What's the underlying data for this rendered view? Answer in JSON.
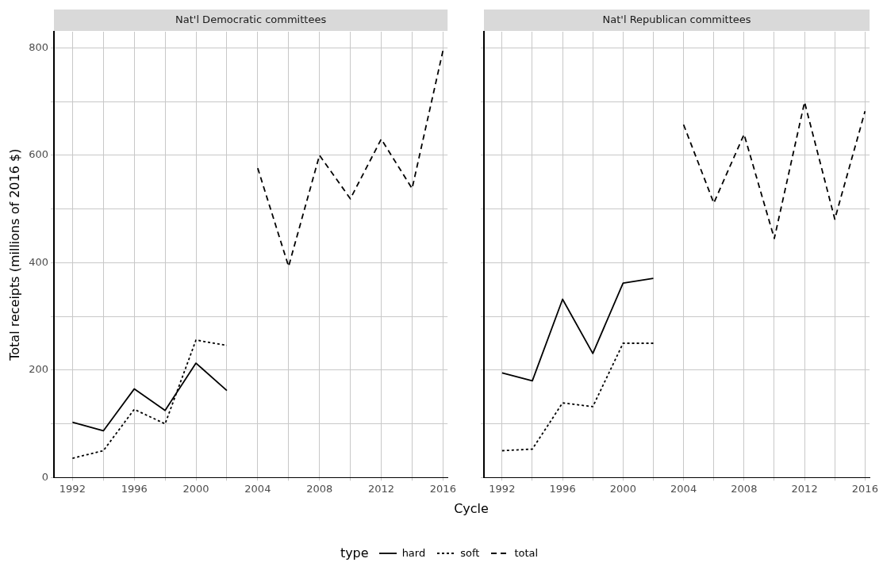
{
  "chart_data": [
    {
      "type": "line",
      "title": "Nat'l Democratic committees",
      "xlabel": "Cycle",
      "ylabel": "Total receipts (millions of 2016 $)",
      "legend_title": "type",
      "legend": "bottom",
      "grid": true,
      "xlim": [
        1990.8,
        2016.3
      ],
      "xticks": [
        1992,
        {
          "value": 1994,
          "label": null
        },
        1996,
        {
          "value": 1998,
          "label": null
        },
        2000,
        {
          "value": 2002,
          "label": null
        },
        2004,
        {
          "value": 2006,
          "label": null
        },
        2008,
        {
          "value": 2010,
          "label": null
        },
        2012,
        {
          "value": 2014,
          "label": null
        },
        2016
      ],
      "ylim": [
        0,
        830
      ],
      "yticks": [
        0,
        {
          "value": 100,
          "label": null
        },
        200,
        {
          "value": 300,
          "label": null
        },
        400,
        {
          "value": 500,
          "label": null
        },
        600,
        {
          "value": 700,
          "label": null
        },
        800
      ],
      "series": [
        {
          "name": "hard",
          "color": "#000000",
          "line_style": "solid",
          "x": [
            1992,
            1994,
            1996,
            1998,
            2000,
            2002
          ],
          "values": [
            103,
            87,
            165,
            125,
            213,
            162
          ]
        },
        {
          "name": "soft",
          "color": "#000000",
          "line_style": "dotted",
          "x": [
            1992,
            1994,
            1996,
            1998,
            2000,
            2002
          ],
          "values": [
            36,
            50,
            127,
            100,
            256,
            246
          ]
        },
        {
          "name": "total",
          "color": "#000000",
          "line_style": "dashed",
          "x": [
            2004,
            2006,
            2008,
            2010,
            2012,
            2014,
            2016
          ],
          "values": [
            576,
            393,
            600,
            519,
            630,
            538,
            795
          ]
        }
      ]
    },
    {
      "type": "line",
      "title": "Nat'l Republican committees",
      "legend": "bottom",
      "grid": true,
      "tick_labels": "x",
      "xlim": [
        1990.8,
        2016.3
      ],
      "xticks": [
        1992,
        {
          "value": 1994,
          "label": null
        },
        1996,
        {
          "value": 1998,
          "label": null
        },
        2000,
        {
          "value": 2002,
          "label": null
        },
        2004,
        {
          "value": 2006,
          "label": null
        },
        2008,
        {
          "value": 2010,
          "label": null
        },
        2012,
        {
          "value": 2014,
          "label": null
        },
        2016
      ],
      "ylim": [
        0,
        830
      ],
      "yticks": [
        0,
        {
          "value": 100,
          "label": null
        },
        200,
        {
          "value": 300,
          "label": null
        },
        400,
        {
          "value": 500,
          "label": null
        },
        600,
        {
          "value": 700,
          "label": null
        },
        800
      ],
      "series": [
        {
          "name": "hard",
          "color": "#000000",
          "line_style": "solid",
          "x": [
            1992,
            1994,
            1996,
            1998,
            2000,
            2002
          ],
          "values": [
            195,
            180,
            332,
            231,
            362,
            371
          ]
        },
        {
          "name": "soft",
          "color": "#000000",
          "line_style": "dotted",
          "x": [
            1992,
            1994,
            1996,
            1998,
            2000,
            2002
          ],
          "values": [
            50,
            53,
            139,
            132,
            250,
            250
          ]
        },
        {
          "name": "total",
          "color": "#000000",
          "line_style": "dashed",
          "x": [
            2004,
            2006,
            2008,
            2010,
            2012,
            2014,
            2016
          ],
          "values": [
            657,
            511,
            639,
            445,
            699,
            481,
            682
          ]
        }
      ]
    }
  ]
}
